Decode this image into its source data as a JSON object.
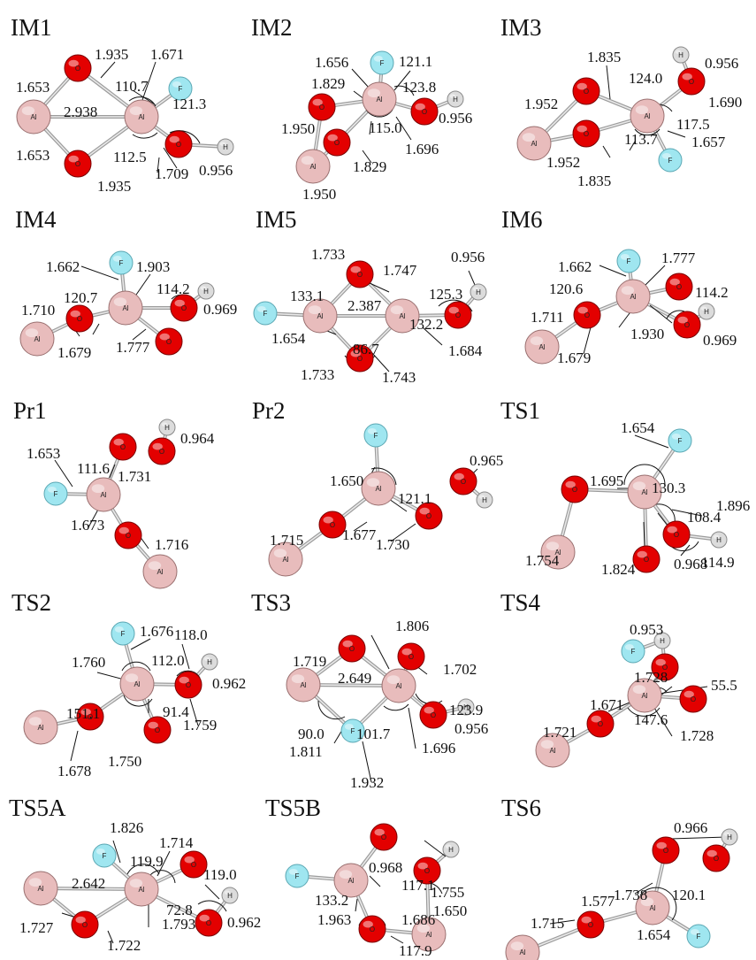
{
  "panels": [
    {
      "id": "IM1",
      "title": "IM1",
      "atoms": [
        {
          "el": "Al"
        },
        {
          "el": "Al"
        },
        {
          "el": "O"
        },
        {
          "el": "O"
        },
        {
          "el": "F"
        },
        {
          "el": "O"
        },
        {
          "el": "H"
        }
      ],
      "labels": [
        "1.935",
        "1.671",
        "1.653",
        "110.7",
        "2.938",
        "121.3",
        "1.653",
        "112.5",
        "0.956",
        "1.935",
        "1.709"
      ]
    },
    {
      "id": "IM2",
      "title": "IM2",
      "atoms": [
        {
          "el": "F"
        },
        {
          "el": "Al"
        },
        {
          "el": "O"
        },
        {
          "el": "O"
        },
        {
          "el": "O"
        },
        {
          "el": "H"
        },
        {
          "el": "Al"
        }
      ],
      "labels": [
        "1.656",
        "121.1",
        "1.829",
        "123.8",
        "1.950",
        "115.0",
        "0.956",
        "1.696",
        "1.829",
        "1.950"
      ]
    },
    {
      "id": "IM3",
      "title": "IM3",
      "atoms": [
        {
          "el": "H"
        },
        {
          "el": "O"
        },
        {
          "el": "O"
        },
        {
          "el": "Al"
        },
        {
          "el": "O"
        },
        {
          "el": "Al"
        },
        {
          "el": "F"
        }
      ],
      "labels": [
        "1.835",
        "0.956",
        "124.0",
        "1.952",
        "1.690",
        "117.5",
        "113.7",
        "1.657",
        "1.952",
        "1.835"
      ]
    },
    {
      "id": "IM4",
      "title": "IM4",
      "atoms": [
        {
          "el": "F"
        },
        {
          "el": "H"
        },
        {
          "el": "Al"
        },
        {
          "el": "O"
        },
        {
          "el": "O"
        },
        {
          "el": "O"
        },
        {
          "el": "Al"
        }
      ],
      "labels": [
        "1.662",
        "1.903",
        "114.2",
        "120.7",
        "1.710",
        "0.969",
        "1.679",
        "1.777"
      ]
    },
    {
      "id": "IM5",
      "title": "IM5",
      "atoms": [
        {
          "el": "O"
        },
        {
          "el": "H"
        },
        {
          "el": "F"
        },
        {
          "el": "Al"
        },
        {
          "el": "Al"
        },
        {
          "el": "O"
        },
        {
          "el": "O"
        }
      ],
      "labels": [
        "1.733",
        "0.956",
        "1.747",
        "133.1",
        "125.3",
        "2.387",
        "1.654",
        "86.7",
        "132.2",
        "1.684",
        "1.733",
        "1.743"
      ]
    },
    {
      "id": "IM6",
      "title": "IM6",
      "atoms": [
        {
          "el": "F"
        },
        {
          "el": "O"
        },
        {
          "el": "Al"
        },
        {
          "el": "O"
        },
        {
          "el": "H"
        },
        {
          "el": "O"
        },
        {
          "el": "Al"
        }
      ],
      "labels": [
        "1.662",
        "1.777",
        "120.6",
        "114.2",
        "1.711",
        "1.930",
        "0.969",
        "1.679"
      ]
    },
    {
      "id": "Pr1",
      "title": "Pr1",
      "atoms": [
        {
          "el": "H"
        },
        {
          "el": "O"
        },
        {
          "el": "O"
        },
        {
          "el": "F"
        },
        {
          "el": "Al"
        },
        {
          "el": "O"
        },
        {
          "el": "Al"
        }
      ],
      "labels": [
        "0.964",
        "1.653",
        "111.6",
        "1.731",
        "1.673",
        "1.716"
      ]
    },
    {
      "id": "Pr2",
      "title": "Pr2",
      "atoms": [
        {
          "el": "F"
        },
        {
          "el": "Al"
        },
        {
          "el": "O"
        },
        {
          "el": "H"
        },
        {
          "el": "O"
        },
        {
          "el": "O"
        },
        {
          "el": "Al"
        }
      ],
      "labels": [
        "0.965",
        "1.650",
        "121.1",
        "1.677",
        "1.715",
        "1.730"
      ]
    },
    {
      "id": "TS1",
      "title": "TS1",
      "atoms": [
        {
          "el": "F"
        },
        {
          "el": "O"
        },
        {
          "el": "Al"
        },
        {
          "el": "O"
        },
        {
          "el": "H"
        },
        {
          "el": "Al"
        },
        {
          "el": "O"
        }
      ],
      "labels": [
        "1.654",
        "1.695",
        "130.3",
        "108.4",
        "1.896",
        "114.9",
        "1.754",
        "1.824",
        "0.968"
      ]
    },
    {
      "id": "TS2",
      "title": "TS2",
      "atoms": [
        {
          "el": "F"
        },
        {
          "el": "H"
        },
        {
          "el": "Al"
        },
        {
          "el": "O"
        },
        {
          "el": "O"
        },
        {
          "el": "Al"
        },
        {
          "el": "O"
        }
      ],
      "labels": [
        "1.676",
        "118.0",
        "1.760",
        "112.0",
        "0.962",
        "151.1",
        "91.4",
        "1.759",
        "1.750",
        "1.678"
      ]
    },
    {
      "id": "TS3",
      "title": "TS3",
      "atoms": [
        {
          "el": "O"
        },
        {
          "el": "O"
        },
        {
          "el": "Al"
        },
        {
          "el": "Al"
        },
        {
          "el": "O"
        },
        {
          "el": "H"
        },
        {
          "el": "F"
        }
      ],
      "labels": [
        "1.806",
        "1.719",
        "1.702",
        "2.649",
        "123.9",
        "90.0",
        "101.7",
        "1.811",
        "0.956",
        "1.696",
        "1.932"
      ]
    },
    {
      "id": "TS4",
      "title": "TS4",
      "atoms": [
        {
          "el": "F"
        },
        {
          "el": "H"
        },
        {
          "el": "O"
        },
        {
          "el": "Al"
        },
        {
          "el": "O"
        },
        {
          "el": "O"
        },
        {
          "el": "Al"
        }
      ],
      "labels": [
        "0.953",
        "1.728",
        "55.5",
        "1.671",
        "1.721",
        "147.6",
        "1.728"
      ]
    },
    {
      "id": "TS5A",
      "title": "TS5A",
      "atoms": [
        {
          "el": "F"
        },
        {
          "el": "O"
        },
        {
          "el": "Al"
        },
        {
          "el": "Al"
        },
        {
          "el": "H"
        },
        {
          "el": "O"
        },
        {
          "el": "O"
        }
      ],
      "labels": [
        "1.826",
        "1.714",
        "119.9",
        "119.0",
        "2.642",
        "72.8",
        "1.793",
        "0.962",
        "1.727",
        "1.722"
      ]
    },
    {
      "id": "TS5B",
      "title": "TS5B",
      "atoms": [
        {
          "el": "O"
        },
        {
          "el": "H"
        },
        {
          "el": "O"
        },
        {
          "el": "F"
        },
        {
          "el": "Al"
        },
        {
          "el": "O"
        },
        {
          "el": "Al"
        }
      ],
      "labels": [
        "0.968",
        "117.1",
        "1.755",
        "133.2",
        "1.650",
        "1.963",
        "1.686",
        "117.9",
        "1.753"
      ]
    },
    {
      "id": "TS6",
      "title": "TS6",
      "atoms": [
        {
          "el": "O"
        },
        {
          "el": "H"
        },
        {
          "el": "O"
        },
        {
          "el": "Al"
        },
        {
          "el": "O"
        },
        {
          "el": "F"
        },
        {
          "el": "Al"
        }
      ],
      "labels": [
        "0.966",
        "1.738",
        "120.1",
        "1.577",
        "1.715",
        "1.654"
      ]
    }
  ],
  "element_colors": {
    "Al": {
      "fill": "#e8bcbc",
      "stroke": "#9a7070"
    },
    "O": {
      "fill": "#e30000",
      "stroke": "#7a0000"
    },
    "F": {
      "fill": "#9fe6f0",
      "stroke": "#5aa7b3"
    },
    "H": {
      "fill": "#dcdcdc",
      "stroke": "#8a8a8a"
    }
  },
  "atom_symbols": {
    "Al": "Al",
    "O": "O",
    "F": "F",
    "H": "H"
  }
}
